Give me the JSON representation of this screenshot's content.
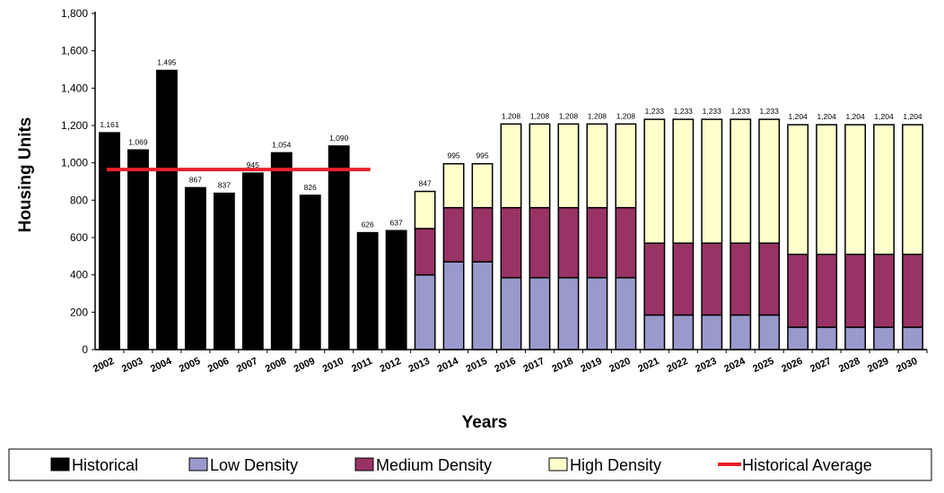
{
  "chart_data": {
    "type": "bar",
    "stacked": true,
    "xlabel": "Years",
    "ylabel": "Housing Units",
    "ylim": [
      0,
      1800
    ],
    "yticks": [
      0,
      200,
      400,
      600,
      800,
      1000,
      1200,
      1400,
      1600,
      1800
    ],
    "ytick_labels": [
      "0",
      "200",
      "400",
      "600",
      "800",
      "1,000",
      "1,200",
      "1,400",
      "1,600",
      "1,800"
    ],
    "grid": false,
    "legend_position": "bottom",
    "categories": [
      "2002",
      "2003",
      "2004",
      "2005",
      "2006",
      "2007",
      "2008",
      "2009",
      "2010",
      "2011",
      "2012",
      "2013",
      "2014",
      "2015",
      "2016",
      "2017",
      "2018",
      "2019",
      "2020",
      "2021",
      "2022",
      "2023",
      "2024",
      "2025",
      "2026",
      "2027",
      "2028",
      "2029",
      "2030"
    ],
    "series": [
      {
        "name": "Historical",
        "color": "#000000",
        "values": [
          1161,
          1069,
          1495,
          867,
          837,
          945,
          1054,
          826,
          1090,
          626,
          637,
          0,
          0,
          0,
          0,
          0,
          0,
          0,
          0,
          0,
          0,
          0,
          0,
          0,
          0,
          0,
          0,
          0,
          0
        ]
      },
      {
        "name": "Low Density",
        "color": "#9999cc",
        "values": [
          0,
          0,
          0,
          0,
          0,
          0,
          0,
          0,
          0,
          0,
          0,
          400,
          470,
          470,
          385,
          385,
          385,
          385,
          385,
          185,
          185,
          185,
          185,
          185,
          120,
          120,
          120,
          120,
          120
        ]
      },
      {
        "name": "Medium Density",
        "color": "#993366",
        "values": [
          0,
          0,
          0,
          0,
          0,
          0,
          0,
          0,
          0,
          0,
          0,
          248,
          290,
          290,
          375,
          375,
          375,
          375,
          375,
          385,
          385,
          385,
          385,
          385,
          390,
          390,
          390,
          390,
          390
        ]
      },
      {
        "name": "High Density",
        "color": "#ffffcc",
        "values": [
          0,
          0,
          0,
          0,
          0,
          0,
          0,
          0,
          0,
          0,
          0,
          199,
          235,
          235,
          448,
          448,
          448,
          448,
          448,
          663,
          663,
          663,
          663,
          663,
          694,
          694,
          694,
          694,
          694
        ]
      }
    ],
    "data_labels": [
      "1,161",
      "1,069",
      "1,495",
      "867",
      "837",
      "945",
      "1,054",
      "826",
      "1,090",
      "626",
      "637",
      "847",
      "995",
      "995",
      "1,208",
      "1,208",
      "1,208",
      "1,208",
      "1,208",
      "1,233",
      "1,233",
      "1,233",
      "1,233",
      "1,233",
      "1,204",
      "1,204",
      "1,204",
      "1,204",
      "1,204"
    ],
    "reference_line": {
      "name": "Historical Average",
      "color": "#e8202a",
      "value": 964,
      "from": "2002",
      "to": "2011"
    }
  }
}
